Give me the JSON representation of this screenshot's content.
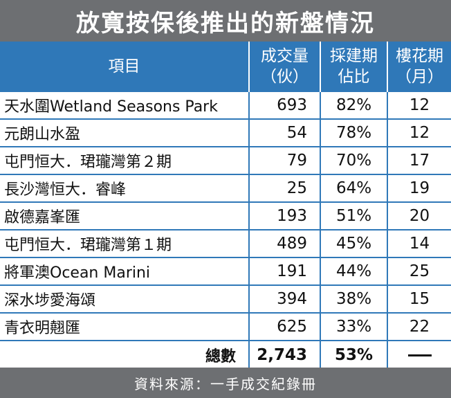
{
  "title": "放寬按保後推出的新盤情況",
  "headers": {
    "item": "項目",
    "units_l1": "成交量",
    "units_l2": "（伙）",
    "ratio_l1": "採建期",
    "ratio_l2": "佔比",
    "period_l1": "樓花期",
    "period_l2": "（月）"
  },
  "rows": [
    {
      "name": "天水圍Wetland Seasons Park",
      "units": "693",
      "ratio": "82%",
      "months": "12"
    },
    {
      "name": "元朗山水盈",
      "units": "54",
      "ratio": "78%",
      "months": "12"
    },
    {
      "name": "屯門恒大．珺瓏灣第２期",
      "units": "79",
      "ratio": "70%",
      "months": "17"
    },
    {
      "name": "長沙灣恒大．睿峰",
      "units": "25",
      "ratio": "64%",
      "months": "19"
    },
    {
      "name": "啟德嘉峯匯",
      "units": "193",
      "ratio": "51%",
      "months": "20"
    },
    {
      "name": "屯門恒大．珺瓏灣第１期",
      "units": "489",
      "ratio": "45%",
      "months": "14"
    },
    {
      "name": "將軍澳Ocean Marini",
      "units": "191",
      "ratio": "44%",
      "months": "25"
    },
    {
      "name": "深水埗愛海頌",
      "units": "394",
      "ratio": "38%",
      "months": "15"
    },
    {
      "name": "青衣明翹匯",
      "units": "625",
      "ratio": "33%",
      "months": "22"
    }
  ],
  "total": {
    "label": "總數",
    "units": "2,743",
    "ratio": "53%"
  },
  "source": "資料來源：一手成交紀錄冊",
  "colors": {
    "header_blue": "#2f78b8",
    "bar_grey": "#6d6f72"
  }
}
